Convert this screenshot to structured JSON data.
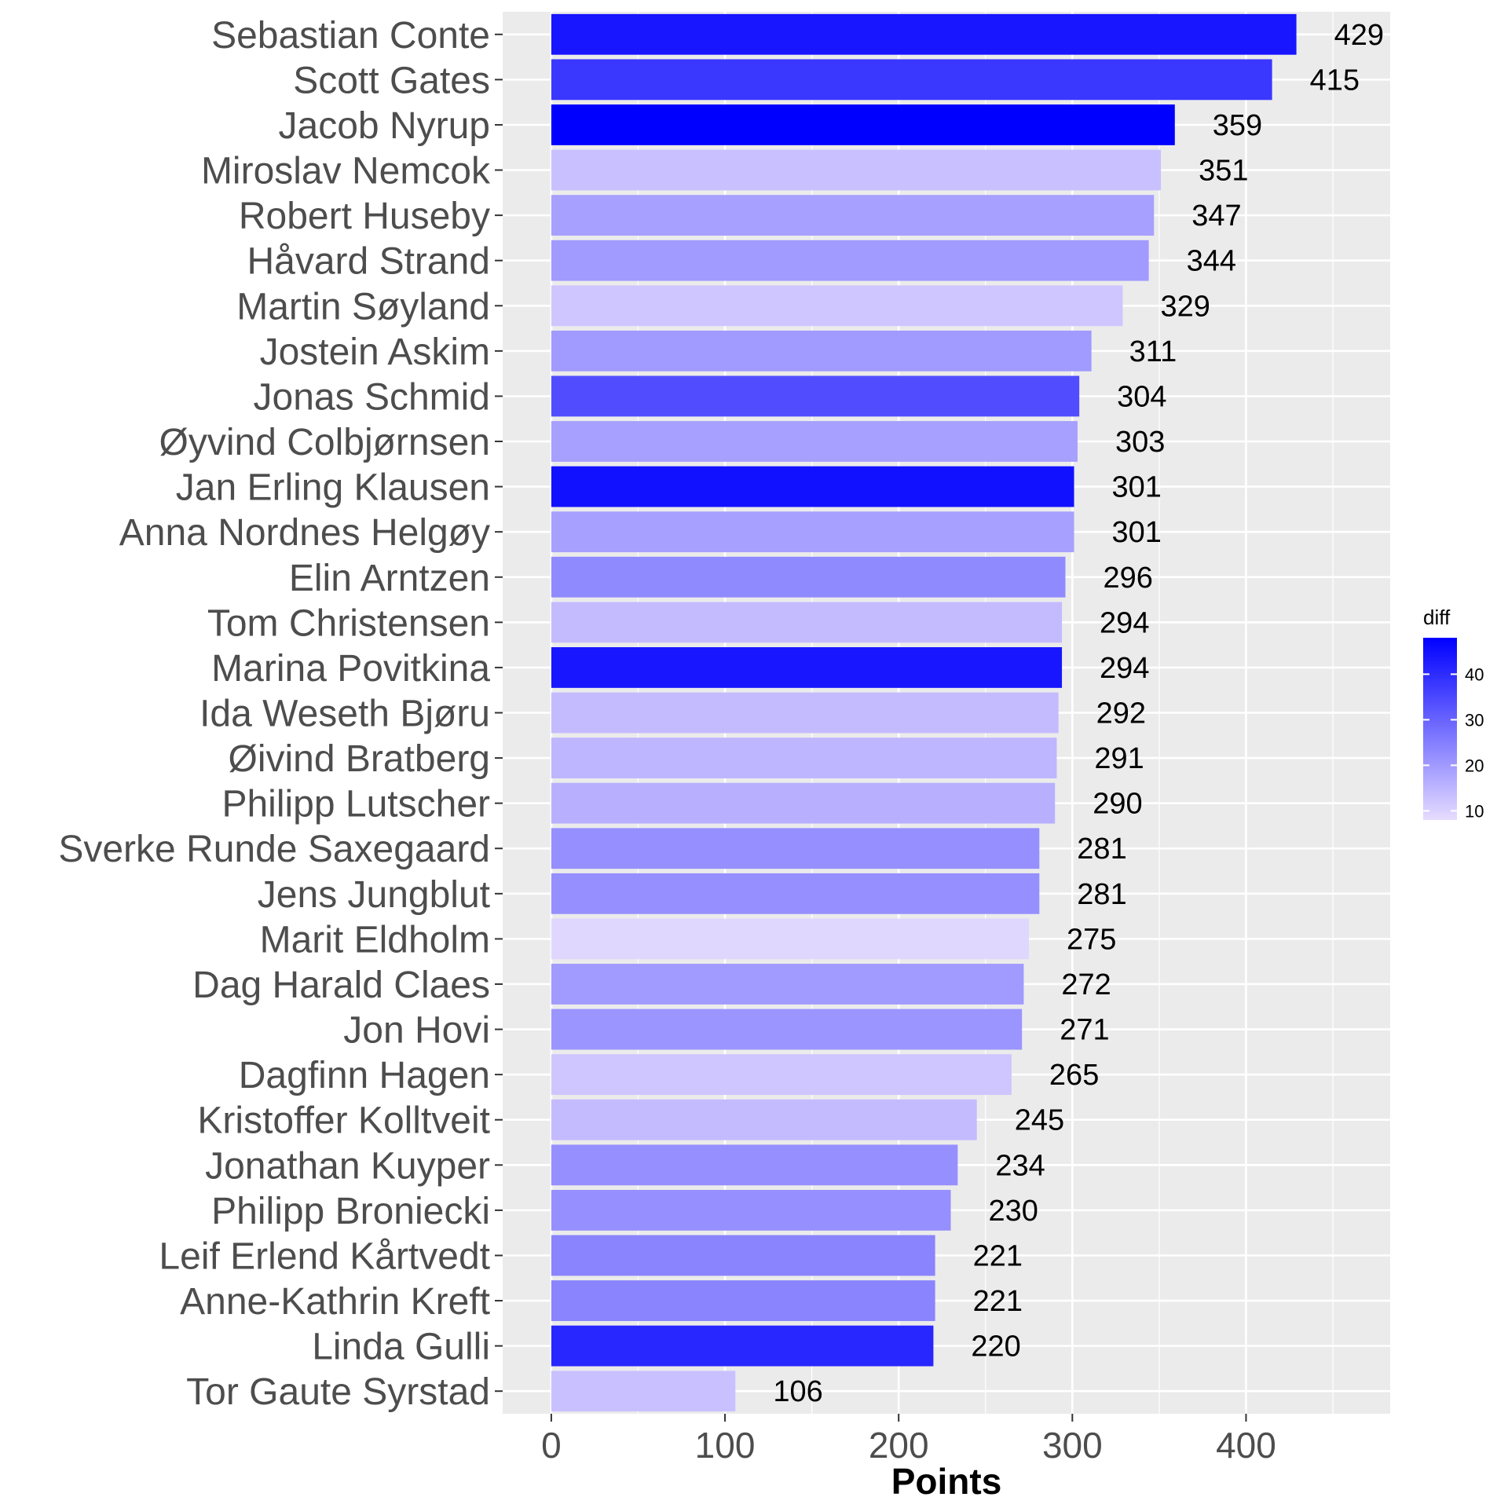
{
  "chart_data": {
    "type": "bar",
    "orientation": "horizontal",
    "xlabel": "Points",
    "ylabel": "",
    "xlim": [
      -28,
      483
    ],
    "x_ticks": [
      0,
      100,
      200,
      300,
      400
    ],
    "grid": true,
    "categories": [
      "Sebastian Conte",
      "Scott Gates",
      "Jacob Nyrup",
      "Miroslav Nemcok",
      "Robert Huseby",
      "Håvard Strand",
      "Martin Søyland",
      "Jostein Askim",
      "Jonas Schmid",
      "Øyvind Colbjørnsen",
      "Jan Erling Klausen",
      "Anna Nordnes Helgøy",
      "Elin Arntzen",
      "Tom Christensen",
      "Marina Povitkina",
      "Ida Weseth Bjøru",
      "Øivind Bratberg",
      "Philipp Lutscher",
      "Sverke Runde Saxegaard",
      "Jens Jungblut",
      "Marit Eldholm",
      "Dag Harald Claes",
      "Jon Hovi",
      "Dagfinn Hagen",
      "Kristoffer Kolltveit",
      "Jonathan Kuyper",
      "Philipp Broniecki",
      "Leif Erlend Kårtvedt",
      "Anne-Kathrin Kreft",
      "Linda Gulli",
      "Tor Gaute Syrstad"
    ],
    "values": [
      429,
      415,
      359,
      351,
      347,
      344,
      329,
      311,
      304,
      303,
      301,
      301,
      296,
      294,
      294,
      292,
      291,
      290,
      281,
      281,
      275,
      272,
      271,
      265,
      245,
      234,
      230,
      221,
      221,
      220,
      106
    ],
    "value_labels": [
      "429",
      "415",
      "359",
      "351",
      "347",
      "344",
      "329",
      "311",
      "304",
      "303",
      "301",
      "301",
      "296",
      "294",
      "294",
      "292",
      "291",
      "290",
      "281",
      "281",
      "275",
      "272",
      "271",
      "265",
      "245",
      "234",
      "230",
      "221",
      "221",
      "220",
      "106"
    ],
    "fill_values": [
      44,
      38,
      48,
      13,
      19,
      20,
      12,
      20,
      34,
      19,
      45,
      19,
      23,
      14,
      44,
      14,
      15,
      16,
      22,
      22,
      9,
      20,
      21,
      12,
      14,
      22,
      22,
      24,
      24,
      41,
      13
    ],
    "color_scale": {
      "title": "diff",
      "low_color": "#e6dcff",
      "high_color": "#0000ff",
      "range": [
        8,
        48
      ],
      "ticks": [
        10,
        20,
        30,
        40
      ],
      "tick_labels": [
        "10",
        "20",
        "30",
        "40"
      ]
    },
    "legend_position": "right",
    "panel_background": "#ebebeb",
    "grid_color": "#ffffff"
  }
}
